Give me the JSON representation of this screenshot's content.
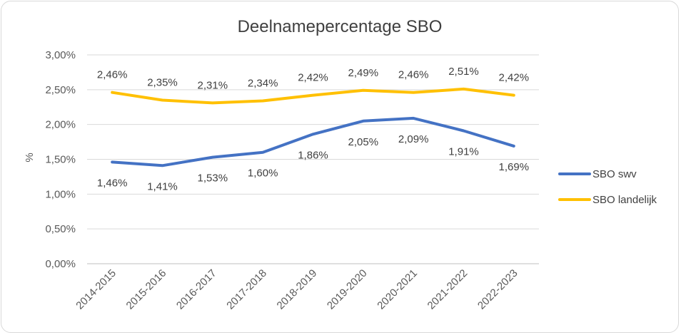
{
  "chart_data": {
    "type": "line",
    "title": "Deelnamepercentage SBO",
    "xlabel": "",
    "ylabel": "%",
    "categories": [
      "2014-2015",
      "2015-2016",
      "2016-2017",
      "2017-2018",
      "2018-2019",
      "2019-2020",
      "2020-2021",
      "2021-2022",
      "2022-2023"
    ],
    "ylim": [
      0,
      3
    ],
    "yticks": [
      0,
      0.5,
      1,
      1.5,
      2,
      2.5,
      3
    ],
    "ytick_labels": [
      "0,00%",
      "0,50%",
      "1,00%",
      "1,50%",
      "2,00%",
      "2,50%",
      "3,00%"
    ],
    "grid": true,
    "legend_position": "right",
    "series": [
      {
        "name": "SBO swv",
        "color": "#4472C4",
        "values": [
          1.46,
          1.41,
          1.53,
          1.6,
          1.86,
          2.05,
          2.09,
          1.91,
          1.69
        ],
        "labels": [
          "1,46%",
          "1,41%",
          "1,53%",
          "1,60%",
          "1,86%",
          "2,05%",
          "2,09%",
          "1,91%",
          "1,69%"
        ]
      },
      {
        "name": "SBO landelijk",
        "color": "#FFC000",
        "values": [
          2.46,
          2.35,
          2.31,
          2.34,
          2.42,
          2.49,
          2.46,
          2.51,
          2.42
        ],
        "labels": [
          "2,46%",
          "2,35%",
          "2,31%",
          "2,34%",
          "2,42%",
          "2,49%",
          "2,46%",
          "2,51%",
          "2,42%"
        ]
      }
    ]
  }
}
